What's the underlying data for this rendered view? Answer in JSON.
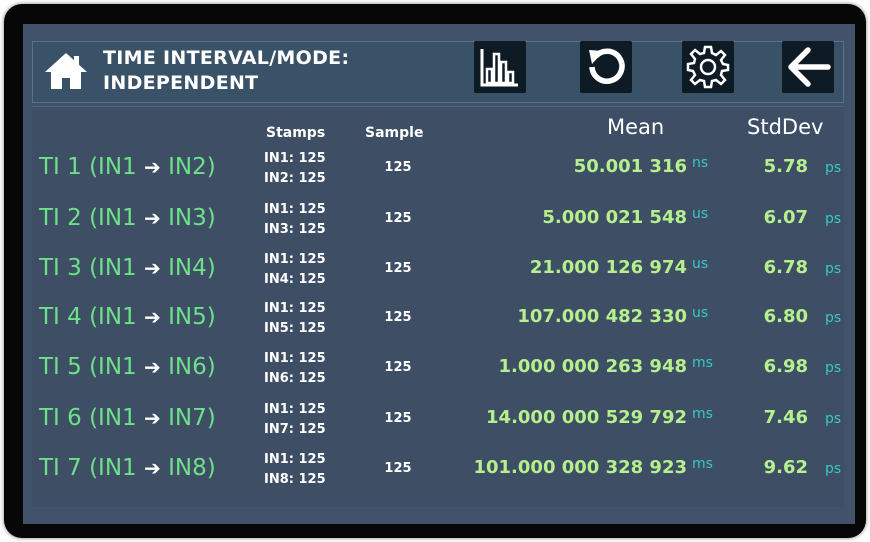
{
  "header": {
    "title_line1": "TIME INTERVAL/MODE:",
    "title_line2": "INDEPENDENT"
  },
  "icons": {
    "home": "home-icon",
    "histogram": "histogram-icon",
    "reset": "reset-icon",
    "settings": "gear-icon",
    "back": "back-arrow-icon"
  },
  "columns": {
    "stamps": "Stamps",
    "sample": "Sample",
    "mean": "Mean",
    "stddev": "StdDev"
  },
  "rows": [
    {
      "label_a": "TI 1 (IN1",
      "label_b": "IN2)",
      "stamp1": "IN1:  125",
      "stamp2": "IN2:  125",
      "sample": "125",
      "mean": "50.001 316",
      "mean_unit": "ns",
      "std": "5.78",
      "std_unit": "ps"
    },
    {
      "label_a": "TI 2 (IN1",
      "label_b": "IN3)",
      "stamp1": "IN1:  125",
      "stamp2": "IN3:  125",
      "sample": "125",
      "mean": "5.000 021 548",
      "mean_unit": "us",
      "std": "6.07",
      "std_unit": "ps"
    },
    {
      "label_a": "TI 3 (IN1",
      "label_b": "IN4)",
      "stamp1": "IN1:  125",
      "stamp2": "IN4:  125",
      "sample": "125",
      "mean": "21.000 126 974",
      "mean_unit": "us",
      "std": "6.78",
      "std_unit": "ps"
    },
    {
      "label_a": "TI 4 (IN1",
      "label_b": "IN5)",
      "stamp1": "IN1:  125",
      "stamp2": "IN5:  125",
      "sample": "125",
      "mean": "107.000 482 330",
      "mean_unit": "us",
      "std": "6.80",
      "std_unit": "ps"
    },
    {
      "label_a": "TI 5 (IN1",
      "label_b": "IN6)",
      "stamp1": "IN1:  125",
      "stamp2": "IN6:  125",
      "sample": "125",
      "mean": "1.000 000 263 948",
      "mean_unit": "ms",
      "std": "6.98",
      "std_unit": "ps"
    },
    {
      "label_a": "TI 6 (IN1",
      "label_b": "IN7)",
      "stamp1": "IN1:  125",
      "stamp2": "IN7:  125",
      "sample": "125",
      "mean": "14.000 000 529 792",
      "mean_unit": "ms",
      "std": "7.46",
      "std_unit": "ps"
    },
    {
      "label_a": "TI 7 (IN1",
      "label_b": "IN8)",
      "stamp1": "IN1:  125",
      "stamp2": "IN8:  125",
      "sample": "125",
      "mean": "101.000 000 328 923",
      "mean_unit": "ms",
      "std": "9.62",
      "std_unit": "ps"
    }
  ],
  "colors": {
    "label": "#6de08a",
    "value": "#b6f08e",
    "unit": "#36c8c8",
    "screen_bg": "#42526a",
    "header_bg": "#3a5268"
  }
}
